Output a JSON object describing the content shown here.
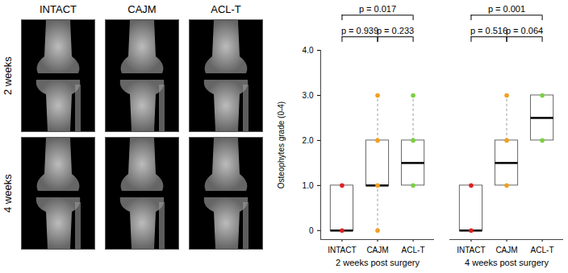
{
  "image_panel": {
    "columns": [
      "INTACT",
      "CAJM",
      "ACL-T"
    ],
    "rows": [
      "2 weeks",
      "4 weeks"
    ]
  },
  "chart_data": {
    "type": "box",
    "y_label": "Osteophytes grade (0-4)",
    "ylim": [
      -0.2,
      4
    ],
    "yticks": [
      0,
      {
        "value": 1,
        "label": "1.0"
      },
      {
        "value": 2,
        "label": "2.0"
      },
      {
        "value": 3,
        "label": "3.0"
      },
      {
        "value": 4,
        "label": "4.0"
      }
    ],
    "categories": [
      "INTACT",
      "CAJM",
      "ACL-T"
    ],
    "colors": [
      "#e02020",
      "#f0a020",
      "#7ad040"
    ],
    "panels": [
      {
        "label": "2 weeks post surgery",
        "boxes": [
          {
            "min": 0,
            "q1": 0,
            "median": 0,
            "q3": 1,
            "max": 1,
            "points": [
              0,
              1
            ]
          },
          {
            "min": 0,
            "q1": 1,
            "median": 1,
            "q3": 2,
            "max": 3,
            "points": [
              0,
              1,
              2,
              3
            ]
          },
          {
            "min": 1,
            "q1": 1,
            "median": 1.5,
            "q3": 2,
            "max": 3,
            "points": [
              1,
              2,
              3
            ]
          }
        ],
        "comparisons": [
          {
            "from": "INTACT",
            "to": "CAJM",
            "label": "p = 0.939"
          },
          {
            "from": "CAJM",
            "to": "ACL-T",
            "label": "p = 0.233"
          },
          {
            "from": "INTACT",
            "to": "ACL-T",
            "label": "p = 0.017"
          }
        ]
      },
      {
        "label": "4 weeks post surgery",
        "boxes": [
          {
            "min": 0,
            "q1": 0,
            "median": 0,
            "q3": 1,
            "max": 1,
            "points": [
              0,
              1
            ]
          },
          {
            "min": 1,
            "q1": 1,
            "median": 1.5,
            "q3": 2,
            "max": 3,
            "points": [
              1,
              2,
              3
            ]
          },
          {
            "min": 2,
            "q1": 2,
            "median": 2.5,
            "q3": 3,
            "max": 3,
            "points": [
              2,
              3
            ]
          }
        ],
        "comparisons": [
          {
            "from": "INTACT",
            "to": "CAJM",
            "label": "p = 0.516"
          },
          {
            "from": "CAJM",
            "to": "ACL-T",
            "label": "p = 0.064"
          },
          {
            "from": "INTACT",
            "to": "ACL-T",
            "label": "p = 0.001"
          }
        ]
      }
    ]
  }
}
